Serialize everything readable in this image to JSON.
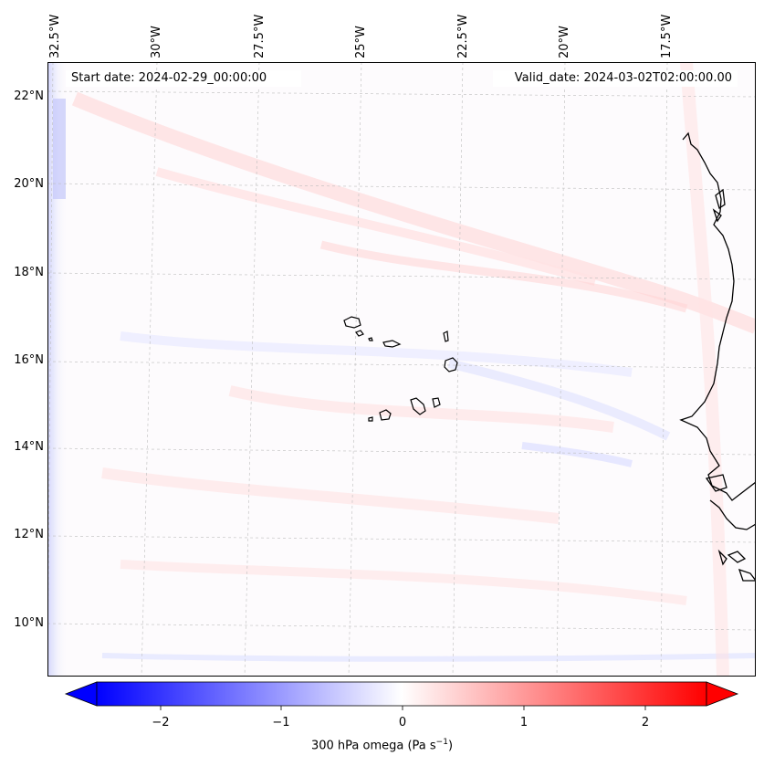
{
  "map": {
    "lon_labels": [
      "32.5°W",
      "30°W",
      "27.5°W",
      "25°W",
      "22.5°W",
      "20°W",
      "17.5°W"
    ],
    "lat_labels": [
      "22°N",
      "20°N",
      "18°N",
      "16°N",
      "14°N",
      "12°N",
      "10°N"
    ],
    "start_date": "Start date: 2024-02-29_00:00:00",
    "valid_date": "Valid_date: 2024-03-02T02:00:00.00"
  },
  "colorbar": {
    "ticks": [
      "−2",
      "−1",
      "0",
      "1",
      "2"
    ],
    "label_main": "300 hPa omega (Pa s",
    "label_sup": "−1",
    "label_end": ")",
    "min_color": "#0000ff",
    "mid_color": "#ffffff",
    "max_color": "#ff0000"
  },
  "colors": {
    "coastline": "#000000",
    "gridline": "#bdbdbd",
    "neg_tint": "#dfe2ff",
    "pos_tint": "#ffd9d9"
  }
}
